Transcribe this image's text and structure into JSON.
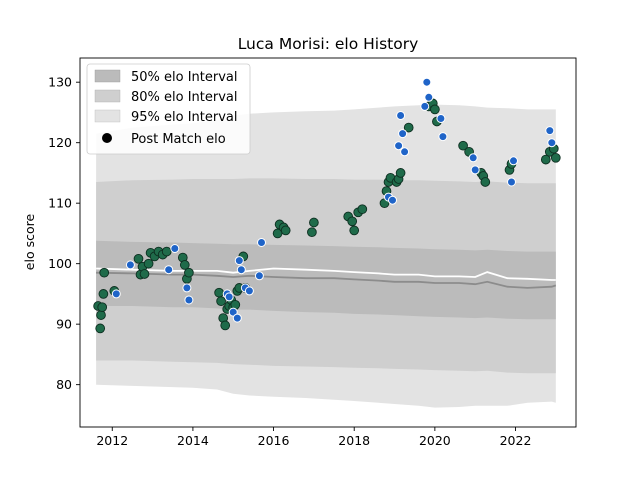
{
  "colors": {
    "band95": "#e3e3e3",
    "band80": "#cfcfcf",
    "band50": "#bbbbbb",
    "mean_line": "#8c8c8c",
    "expected_line": "#ffffff",
    "match_fill": "#1f6b4a",
    "post_match_fill": "#1f64c8"
  },
  "chart_data": {
    "type": "scatter",
    "title": "Luca Morisi: elo History",
    "xlabel": "",
    "ylabel": "elo score",
    "xlim": [
      2011.2,
      2023.5
    ],
    "ylim": [
      73,
      134
    ],
    "x_ticks": [
      2012,
      2014,
      2016,
      2018,
      2020,
      2022
    ],
    "x_tick_labels": [
      "2012",
      "2014",
      "2016",
      "2018",
      "2020",
      "2022"
    ],
    "y_ticks": [
      80,
      90,
      100,
      110,
      120,
      130
    ],
    "y_tick_labels": [
      "80",
      "90",
      "100",
      "110",
      "120",
      "130"
    ],
    "grid": false,
    "legend": {
      "placement": "top-left",
      "entries": [
        "50% elo Interval",
        "80% elo Interval",
        "95% elo Interval",
        "Post Match elo"
      ]
    },
    "bands": {
      "x": [
        2011.6,
        2012.5,
        2013.5,
        2014.0,
        2014.6,
        2015.0,
        2015.4,
        2016.0,
        2016.8,
        2017.5,
        2018.0,
        2018.6,
        2019.0,
        2019.6,
        2020.0,
        2020.6,
        2021.0,
        2021.3,
        2021.8,
        2022.3,
        2022.9,
        2023.0
      ],
      "center": [
        98.5,
        98.4,
        98.2,
        98.2,
        98.0,
        97.8,
        98.0,
        97.8,
        97.6,
        97.6,
        97.4,
        97.2,
        97.0,
        97.0,
        96.8,
        96.8,
        96.6,
        97.0,
        96.2,
        96.0,
        96.2,
        96.4
      ],
      "expected": [
        99.2,
        99.0,
        98.8,
        98.8,
        98.8,
        98.5,
        98.8,
        99.2,
        99.0,
        98.8,
        98.6,
        98.4,
        98.2,
        98.2,
        97.9,
        97.9,
        97.8,
        98.6,
        97.6,
        97.5,
        97.3,
        97.3
      ],
      "p50_low": [
        93.0,
        93.0,
        92.8,
        92.8,
        92.6,
        92.4,
        92.4,
        92.2,
        92.0,
        91.9,
        91.7,
        91.6,
        91.5,
        91.3,
        91.2,
        91.1,
        91.0,
        91.1,
        90.9,
        90.8,
        90.8,
        90.8
      ],
      "p50_high": [
        103.8,
        103.6,
        103.5,
        103.4,
        103.3,
        103.2,
        103.2,
        103.1,
        103.0,
        102.9,
        102.8,
        102.7,
        102.6,
        102.5,
        102.4,
        102.3,
        102.2,
        102.3,
        102.1,
        102.0,
        102.0,
        102.0
      ],
      "p80_low": [
        84.0,
        84.0,
        83.8,
        83.7,
        83.6,
        83.4,
        83.3,
        83.1,
        83.0,
        82.9,
        82.8,
        82.7,
        82.6,
        82.5,
        82.4,
        82.3,
        82.2,
        82.3,
        82.0,
        81.9,
        81.9,
        81.9
      ],
      "p80_high": [
        113.5,
        113.8,
        113.9,
        114.0,
        114.0,
        114.0,
        114.1,
        114.1,
        114.0,
        114.0,
        113.9,
        113.9,
        113.8,
        113.8,
        113.7,
        113.6,
        113.5,
        113.6,
        113.4,
        113.3,
        113.3,
        113.3
      ],
      "p95_low": [
        80.0,
        79.8,
        79.6,
        79.5,
        79.2,
        78.5,
        78.2,
        78.0,
        77.8,
        77.5,
        77.3,
        77.0,
        76.8,
        76.5,
        76.2,
        76.3,
        76.5,
        76.5,
        76.5,
        77.0,
        77.2,
        77.0
      ],
      "p95_high": [
        121.5,
        122.5,
        123.0,
        123.2,
        123.8,
        124.5,
        124.8,
        125.0,
        125.2,
        125.3,
        125.5,
        125.8,
        126.0,
        126.2,
        126.3,
        126.2,
        126.0,
        125.8,
        125.7,
        125.5,
        125.5,
        125.5
      ]
    },
    "series": [
      {
        "name": "",
        "role": "pre-match",
        "x": [
          2011.65,
          2011.7,
          2011.72,
          2011.75,
          2011.78,
          2011.8,
          2012.05,
          2012.65,
          2012.7,
          2012.75,
          2012.8,
          2012.9,
          2012.95,
          2013.05,
          2013.15,
          2013.25,
          2013.35,
          2013.75,
          2013.8,
          2013.85,
          2013.9,
          2014.65,
          2014.7,
          2014.75,
          2014.8,
          2014.85,
          2014.9,
          2014.95,
          2015.0,
          2015.05,
          2015.1,
          2015.15,
          2015.25,
          2015.3,
          2016.1,
          2016.15,
          2016.25,
          2016.3,
          2016.95,
          2017.0,
          2017.85,
          2017.95,
          2018.0,
          2018.1,
          2018.2,
          2018.75,
          2018.8,
          2018.85,
          2018.9,
          2019.05,
          2019.1,
          2019.15,
          2019.35,
          2019.85,
          2019.95,
          2020.0,
          2020.05,
          2020.7,
          2020.85,
          2021.15,
          2021.2,
          2021.25,
          2021.85,
          2021.9,
          2022.75,
          2022.85,
          2022.95,
          2023.0
        ],
        "y": [
          93.0,
          89.3,
          91.5,
          92.8,
          95.0,
          98.5,
          95.5,
          100.8,
          98.2,
          99.5,
          98.3,
          100.0,
          101.8,
          101.2,
          102.0,
          101.5,
          102.0,
          101.0,
          99.8,
          97.5,
          98.5,
          95.2,
          93.8,
          91.0,
          89.8,
          92.5,
          93.0,
          94.0,
          92.8,
          93.2,
          95.5,
          96.0,
          101.2,
          96.0,
          105.0,
          106.5,
          106.0,
          105.5,
          105.2,
          106.8,
          107.8,
          107.0,
          105.5,
          108.5,
          109.0,
          110.0,
          112.0,
          113.5,
          114.2,
          113.5,
          114.0,
          115.0,
          122.5,
          126.0,
          126.5,
          125.5,
          123.5,
          119.5,
          118.5,
          115.0,
          114.5,
          113.5,
          115.5,
          116.5,
          117.2,
          118.5,
          119.0,
          117.5
        ]
      },
      {
        "name": "Post Match elo",
        "role": "post-match",
        "x": [
          2012.1,
          2012.45,
          2013.4,
          2013.55,
          2013.85,
          2013.9,
          2014.85,
          2014.9,
          2015.0,
          2015.1,
          2015.15,
          2015.2,
          2015.3,
          2015.4,
          2015.65,
          2015.7,
          2018.85,
          2018.95,
          2019.1,
          2019.15,
          2019.2,
          2019.25,
          2019.75,
          2019.8,
          2019.85,
          2020.15,
          2020.2,
          2020.95,
          2021.0,
          2021.9,
          2021.95,
          2022.85,
          2022.9
        ],
        "y": [
          95.0,
          99.8,
          99.0,
          102.5,
          96.0,
          94.0,
          95.0,
          94.5,
          92.0,
          91.0,
          100.5,
          99.0,
          96.0,
          95.5,
          98.0,
          103.5,
          111.0,
          110.5,
          119.5,
          124.5,
          121.5,
          118.5,
          126.0,
          130.0,
          127.5,
          124.0,
          121.0,
          117.5,
          115.5,
          113.5,
          117.0,
          122.0,
          120.0
        ]
      }
    ]
  }
}
